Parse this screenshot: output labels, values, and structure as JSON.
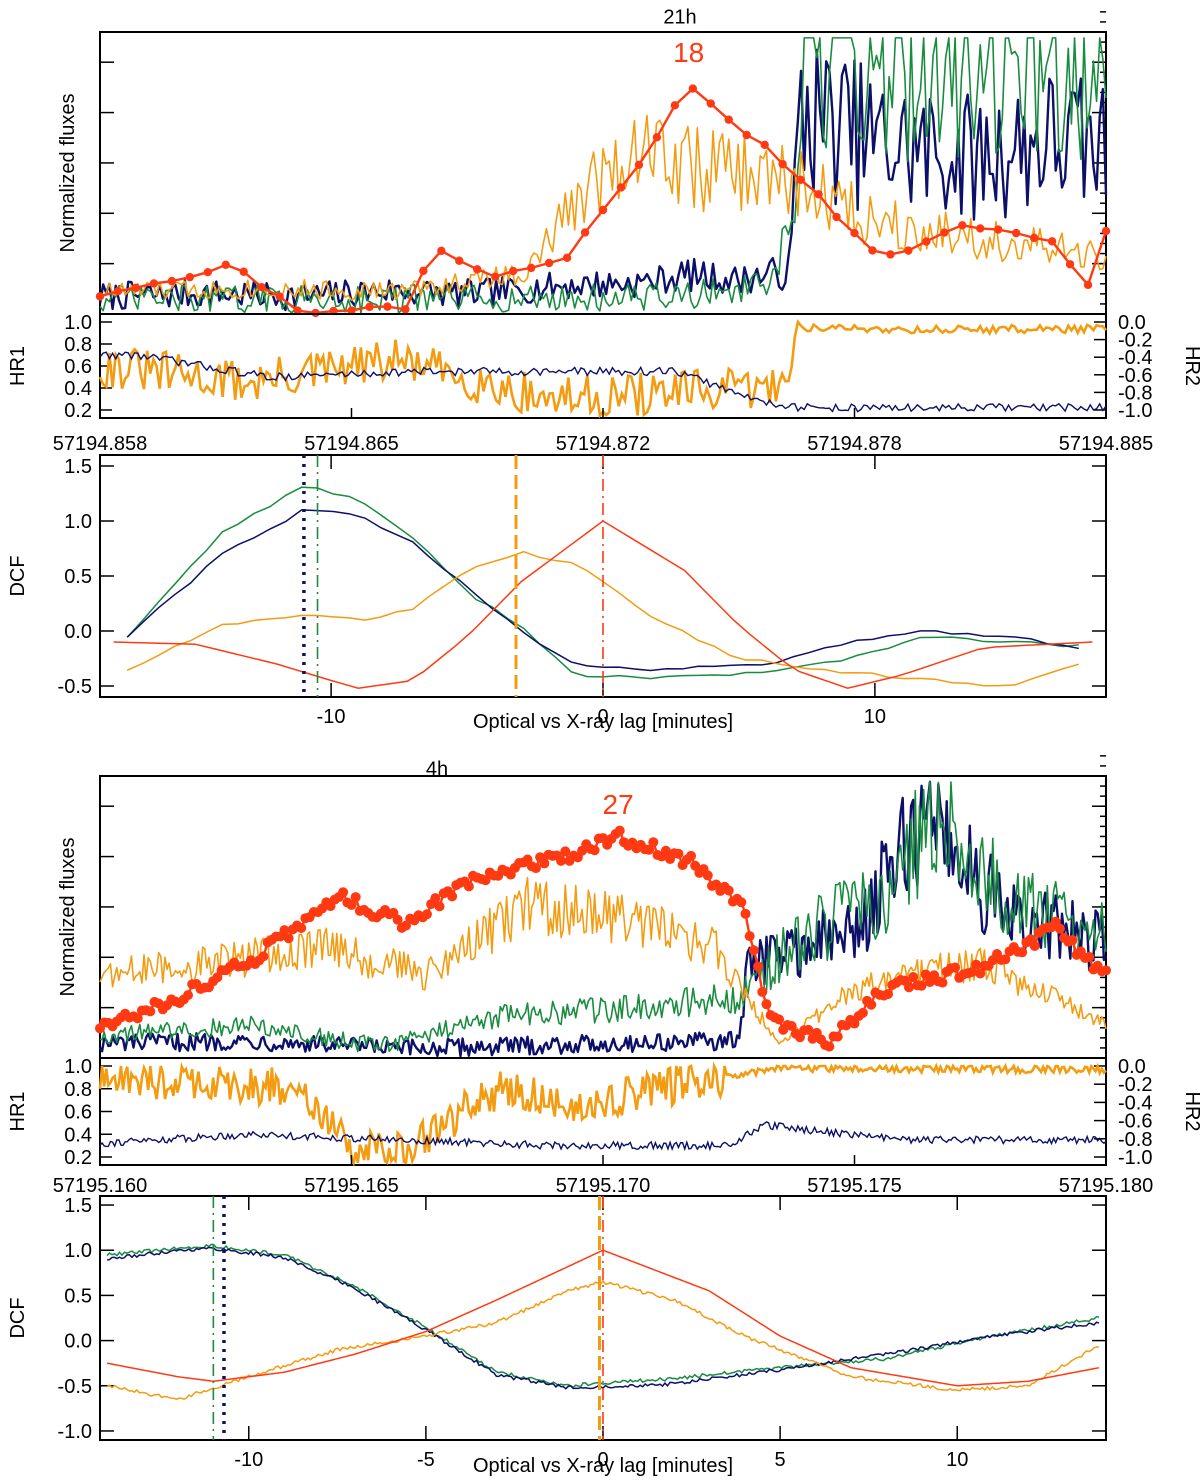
{
  "colors": {
    "green": "#1a8c3f",
    "navy": "#0c1068",
    "orange": "#f39c12",
    "red": "#ff3a12",
    "black": "#000000"
  },
  "chart_data": [
    {
      "id": "top-21h",
      "title": "21h",
      "flux": {
        "type": "line",
        "ylabel": "Normalized fluxes",
        "xlim": [
          57194.858,
          57194.885
        ],
        "peak_label": "18",
        "series": [
          {
            "color": "navy",
            "x": [
              57194.858,
              57194.861,
              57194.8635,
              57194.8655,
              57194.868,
              57194.8705,
              57194.8725,
              57194.8738,
              57194.875,
              57194.8765,
              57194.8768,
              57194.879,
              57194.8815,
              57194.8835,
              57194.885
            ],
            "y": [
              0.06,
              0.07,
              0.06,
              0.08,
              0.07,
              0.1,
              0.11,
              0.14,
              0.12,
              0.15,
              0.72,
              0.6,
              0.55,
              0.62,
              0.58
            ]
          },
          {
            "color": "green",
            "x": [
              57194.858,
              57194.862,
              57194.866,
              57194.87,
              57194.8735,
              57194.876,
              57194.8766,
              57194.8769,
              57194.879,
              57194.882,
              57194.885
            ],
            "y": [
              0.05,
              0.05,
              0.05,
              0.05,
              0.06,
              0.1,
              0.32,
              0.88,
              0.9,
              0.92,
              0.86
            ]
          },
          {
            "color": "orange",
            "x": [
              57194.858,
              57194.862,
              57194.866,
              57194.8695,
              57194.871,
              57194.8725,
              57194.874,
              57194.8755,
              57194.8768,
              57194.8785,
              57194.8805,
              57194.8825,
              57194.885
            ],
            "y": [
              0.08,
              0.09,
              0.08,
              0.15,
              0.45,
              0.62,
              0.52,
              0.5,
              0.46,
              0.35,
              0.3,
              0.25,
              0.2
            ]
          },
          {
            "color": "red",
            "markers": true,
            "x": [
              57194.858,
              57194.8615,
              57194.8635,
              57194.8665,
              57194.8668,
              57194.8685,
              57194.8705,
              57194.8725,
              57194.8738,
              57194.8758,
              57194.8768,
              57194.879,
              57194.881,
              57194.8835,
              57194.8845,
              57194.885
            ],
            "y": [
              0.07,
              0.18,
              0.0,
              0.03,
              0.26,
              0.14,
              0.2,
              0.56,
              0.85,
              0.62,
              0.5,
              0.2,
              0.32,
              0.28,
              0.1,
              0.3
            ]
          }
        ]
      },
      "hr": {
        "left_label": "HR1",
        "right_label": "HR2",
        "left_ticks": [
          "1.0",
          "0.8",
          "0.6",
          "0.4",
          "0.2"
        ],
        "right_ticks": [
          "0.0",
          "-0.2",
          "-0.4",
          "-0.6",
          "-0.8",
          "-1.0"
        ],
        "x_ticks": [
          "57194.858",
          "57194.865",
          "57194.872",
          "57194.878",
          "57194.885"
        ],
        "orange": {
          "x": [
            57194.858,
            57194.862,
            57194.866,
            57194.87,
            57194.8762,
            57194.8768,
            57194.88,
            57194.885
          ],
          "y": [
            0.6,
            0.45,
            0.65,
            0.3,
            0.4,
            0.95,
            0.93,
            0.94
          ]
        },
        "navy": {
          "x": [
            57194.859,
            57194.8625,
            57194.8665,
            57194.8735,
            57194.8755,
            57194.8768,
            57194.88,
            57194.885
          ],
          "y": [
            0.7,
            0.5,
            0.55,
            0.55,
            0.3,
            0.22,
            0.22,
            0.22
          ]
        }
      },
      "dcf": {
        "ylabel": "DCF",
        "xlabel": "Optical vs X-ray lag [minutes]",
        "xlim": [
          -18.5,
          18.5
        ],
        "ylim": [
          -0.6,
          1.6
        ],
        "x_ticks": [
          -10,
          0,
          10
        ],
        "x_tick_labels": [
          "-10",
          "0",
          "10"
        ],
        "y_ticks": [
          -0.5,
          0.0,
          0.5,
          1.0,
          1.5
        ],
        "y_tick_labels": [
          "-0.5",
          "0.0",
          "0.5",
          "1.0",
          "1.5"
        ],
        "series": [
          {
            "color": "green",
            "x": [
              -17.5,
              -14,
              -11,
              -9,
              -7,
              -5,
              -3,
              -1,
              2,
              6,
              9,
              12,
              15,
              17.5
            ],
            "y": [
              -0.05,
              0.9,
              1.32,
              1.2,
              0.85,
              0.35,
              0.05,
              -0.42,
              -0.42,
              -0.38,
              -0.25,
              -0.05,
              -0.1,
              -0.14
            ]
          },
          {
            "color": "navy",
            "x": [
              -17.5,
              -14,
              -11,
              -9,
              -7,
              -5,
              -3,
              -1,
              2,
              6,
              9,
              12,
              15,
              17.5
            ],
            "y": [
              -0.05,
              0.7,
              1.1,
              1.05,
              0.8,
              0.4,
              0.0,
              -0.32,
              -0.35,
              -0.3,
              -0.1,
              0.0,
              -0.05,
              -0.15
            ]
          },
          {
            "color": "orange",
            "x": [
              -17.5,
              -14,
              -11,
              -9,
              -7,
              -5,
              -3,
              -1,
              0,
              2,
              5,
              8,
              12,
              15,
              17.5
            ],
            "y": [
              -0.35,
              0.05,
              0.15,
              0.1,
              0.2,
              0.55,
              0.72,
              0.6,
              0.45,
              0.1,
              -0.25,
              -0.35,
              -0.45,
              -0.5,
              -0.3
            ]
          },
          {
            "color": "red",
            "x": [
              -18,
              -15,
              -12,
              -10,
              -9,
              -7,
              -5,
              -3,
              0,
              3,
              5,
              7,
              9,
              11,
              14,
              18
            ],
            "y": [
              -0.1,
              -0.12,
              -0.3,
              -0.45,
              -0.52,
              -0.45,
              -0.05,
              0.45,
              1.0,
              0.55,
              0.05,
              -0.35,
              -0.52,
              -0.4,
              -0.15,
              -0.1
            ]
          }
        ],
        "vlines": [
          {
            "x": -11.0,
            "color": "navy",
            "style": "dotted"
          },
          {
            "x": -10.5,
            "color": "green",
            "style": "dashdot"
          },
          {
            "x": -3.2,
            "color": "orange",
            "style": "dashed"
          },
          {
            "x": 0.0,
            "color": "red",
            "style": "dashdot"
          }
        ]
      }
    },
    {
      "id": "bottom-4h",
      "title": "4h",
      "flux": {
        "type": "line",
        "ylabel": "Normalized fluxes",
        "xlim": [
          57195.16,
          57195.18
        ],
        "peak_label": "27",
        "series": [
          {
            "color": "navy",
            "x": [
              57195.16,
              57195.163,
              57195.166,
              57195.17,
              57195.1727,
              57195.1729,
              57195.175,
              57195.1765,
              57195.178,
              57195.18
            ],
            "y": [
              0.05,
              0.06,
              0.03,
              0.05,
              0.06,
              0.35,
              0.45,
              0.9,
              0.5,
              0.42
            ]
          },
          {
            "color": "green",
            "x": [
              57195.16,
              57195.163,
              57195.1655,
              57195.168,
              57195.1705,
              57195.1727,
              57195.174,
              57195.1755,
              57195.1768,
              57195.178,
              57195.18
            ],
            "y": [
              0.08,
              0.12,
              0.04,
              0.15,
              0.18,
              0.22,
              0.45,
              0.55,
              0.95,
              0.55,
              0.45
            ]
          },
          {
            "color": "orange",
            "x": [
              57195.16,
              57195.1625,
              57195.1645,
              57195.1665,
              57195.1685,
              57195.1705,
              57195.1722,
              57195.1735,
              57195.175,
              57195.1775,
              57195.18
            ],
            "y": [
              0.3,
              0.35,
              0.4,
              0.3,
              0.55,
              0.5,
              0.4,
              0.05,
              0.25,
              0.35,
              0.12
            ]
          },
          {
            "color": "red",
            "markers": true,
            "x": [
              57195.16,
              57195.1615,
              57195.163,
              57195.1647,
              57195.166,
              57195.1677,
              57195.1693,
              57195.1703,
              57195.1718,
              57195.1728,
              57195.1733,
              57195.1745,
              57195.1755,
              57195.1775,
              57195.179,
              57195.18
            ],
            "y": [
              0.12,
              0.22,
              0.36,
              0.6,
              0.5,
              0.68,
              0.74,
              0.82,
              0.72,
              0.55,
              0.15,
              0.05,
              0.25,
              0.33,
              0.48,
              0.3
            ]
          }
        ]
      },
      "hr": {
        "left_label": "HR1",
        "right_label": "HR2",
        "left_ticks": [
          "1.0",
          "0.8",
          "0.6",
          "0.4",
          "0.2"
        ],
        "right_ticks": [
          "0.0",
          "-0.2",
          "-0.4",
          "-0.6",
          "-0.8",
          "-1.0"
        ],
        "x_ticks": [
          "57195.160",
          "57195.165",
          "57195.170",
          "57195.175",
          "57195.180"
        ],
        "orange": {
          "x": [
            57195.16,
            57195.162,
            57195.164,
            57195.165,
            57195.166,
            57195.168,
            57195.1695,
            57195.171,
            57195.1725,
            57195.1735,
            57195.18
          ],
          "y": [
            0.88,
            0.86,
            0.8,
            0.3,
            0.25,
            0.82,
            0.62,
            0.8,
            0.9,
            0.98,
            0.97
          ]
        },
        "navy": {
          "x": [
            57195.16,
            57195.163,
            57195.166,
            57195.169,
            57195.1725,
            57195.1732,
            57195.176,
            57195.18
          ],
          "y": [
            0.32,
            0.4,
            0.35,
            0.3,
            0.3,
            0.48,
            0.35,
            0.35
          ]
        }
      },
      "dcf": {
        "ylabel": "DCF",
        "xlabel": "Optical vs X-ray lag [minutes]",
        "xlim": [
          -14.2,
          14.2
        ],
        "ylim": [
          -1.1,
          1.6
        ],
        "x_ticks": [
          -10,
          -5,
          0,
          5,
          10
        ],
        "x_tick_labels": [
          "-10",
          "-5",
          "0",
          "5",
          "10"
        ],
        "y_ticks": [
          -1.0,
          -0.5,
          0.0,
          0.5,
          1.0,
          1.5
        ],
        "y_tick_labels": [
          "-1.0",
          "-0.5",
          "0.0",
          "0.5",
          "1.0",
          "1.5"
        ],
        "series": [
          {
            "color": "green",
            "x": [
              -14,
              -12,
              -11,
              -9,
              -7,
              -5,
              -3,
              -1,
              2,
              5,
              8,
              11,
              14
            ],
            "y": [
              0.95,
              1.02,
              1.05,
              0.95,
              0.6,
              0.15,
              -0.35,
              -0.5,
              -0.42,
              -0.3,
              -0.2,
              0.05,
              0.25
            ]
          },
          {
            "color": "navy",
            "x": [
              -14,
              -12,
              -11,
              -9,
              -7,
              -5,
              -3,
              -1,
              2,
              5,
              8,
              11,
              14
            ],
            "y": [
              0.9,
              1.0,
              1.02,
              0.92,
              0.58,
              0.12,
              -0.38,
              -0.52,
              -0.48,
              -0.32,
              -0.15,
              0.05,
              0.2
            ]
          },
          {
            "color": "orange",
            "x": [
              -14,
              -12,
              -10,
              -7.5,
              -5,
              -3,
              -1,
              0,
              2,
              4,
              7,
              10,
              12,
              14
            ],
            "y": [
              -0.5,
              -0.65,
              -0.4,
              -0.1,
              0.05,
              0.2,
              0.55,
              0.65,
              0.45,
              0.05,
              -0.4,
              -0.55,
              -0.5,
              -0.05
            ]
          },
          {
            "color": "red",
            "x": [
              -14,
              -12,
              -11,
              -9,
              -7,
              -5,
              -3,
              0,
              3,
              5,
              7,
              10,
              12,
              14
            ],
            "y": [
              -0.25,
              -0.4,
              -0.45,
              -0.35,
              -0.15,
              0.1,
              0.45,
              1.0,
              0.55,
              0.05,
              -0.3,
              -0.5,
              -0.45,
              -0.3
            ]
          }
        ],
        "vlines": [
          {
            "x": -11.0,
            "color": "green",
            "style": "dashdot"
          },
          {
            "x": -10.7,
            "color": "navy",
            "style": "dotted"
          },
          {
            "x": -0.1,
            "color": "orange",
            "style": "dashed"
          },
          {
            "x": 0.0,
            "color": "red",
            "style": "dashdot"
          }
        ]
      }
    }
  ]
}
